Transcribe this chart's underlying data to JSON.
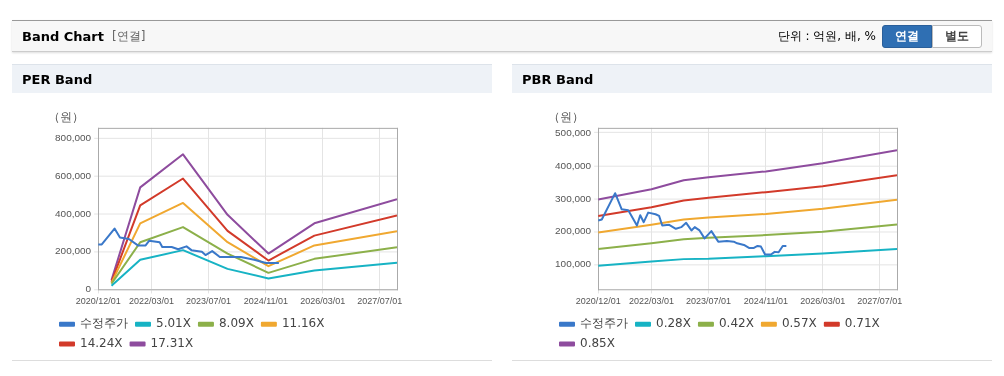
{
  "chart_data": [
    {
      "type": "other",
      "title": "Band Chart",
      "annotations": [
        "[연결]",
        "단위 : 억원, 배, %",
        "연결",
        "별도"
      ]
    },
    {
      "type": "line",
      "title": "PER Band",
      "ylabel": "（원）",
      "xlim": [
        "2020-12-01",
        "2027-11-25"
      ],
      "ylim": [
        0,
        855000
      ],
      "xticks": [
        {
          "value": "2020-12-01",
          "label": "2020/12/01"
        },
        {
          "value": "2022-03-01",
          "label": "2022/03/01"
        },
        {
          "value": "2023-07-01",
          "label": "2023/07/01"
        },
        {
          "value": "2024-11-01",
          "label": "2024/11/01"
        },
        {
          "value": "2026-03-01",
          "label": "2026/03/01"
        },
        {
          "value": "2027-07-01",
          "label": "2027/07/01"
        }
      ],
      "yticks": [
        {
          "value": 0,
          "label": "0"
        },
        {
          "value": 200000,
          "label": "200,000"
        },
        {
          "value": 400000,
          "label": "400,000"
        },
        {
          "value": 600000,
          "label": "600,000"
        },
        {
          "value": 800000,
          "label": "800,000"
        }
      ],
      "grid": true,
      "legend": "bottom",
      "marker": "none",
      "line_style": "solid",
      "series": [
        {
          "name": "수정주가",
          "color": "#3a78c9",
          "x": [
            "2020-12-01",
            "2021-01-01",
            "2021-04-20",
            "2021-06-05",
            "2021-08-20",
            "2021-11-05",
            "2022-01-10",
            "2022-02-10",
            "2022-05-10",
            "2022-06-01",
            "2022-08-20",
            "2022-10-15",
            "2022-12-25",
            "2023-02-05",
            "2023-05-05",
            "2023-06-05",
            "2023-08-01",
            "2023-10-05",
            "2023-12-05",
            "2024-04-01",
            "2024-07-25",
            "2024-11-01",
            "2024-12-25",
            "2025-02-20"
          ],
          "values": [
            238000,
            238000,
            322000,
            275000,
            267000,
            233000,
            233000,
            258000,
            250000,
            225000,
            225000,
            213000,
            228000,
            208000,
            199000,
            182000,
            203000,
            172000,
            172000,
            172000,
            157000,
            140000,
            140000,
            140000
          ]
        },
        {
          "name": "5.01X",
          "color": "#17b3c4",
          "x": [
            "2021-03-25",
            "2021-11-25",
            "2022-11-25",
            "2023-12-10",
            "2024-11-23",
            "2025-12-20",
            "2027-11-25"
          ],
          "values": [
            20000,
            157000,
            208000,
            109000,
            58000,
            100000,
            141000
          ]
        },
        {
          "name": "8.09X",
          "color": "#8cb04a",
          "x": [
            "2021-03-25",
            "2021-11-25",
            "2022-11-25",
            "2023-12-10",
            "2024-11-23",
            "2025-12-20",
            "2027-11-25"
          ],
          "values": [
            30000,
            250000,
            330000,
            190000,
            88000,
            162000,
            223000
          ]
        },
        {
          "name": "11.16X",
          "color": "#f0a830",
          "x": [
            "2021-03-25",
            "2021-11-25",
            "2022-11-25",
            "2023-12-10",
            "2024-11-23",
            "2025-12-20",
            "2027-11-25"
          ],
          "values": [
            35000,
            350000,
            458000,
            250000,
            123000,
            233000,
            308000
          ]
        },
        {
          "name": "14.24X",
          "color": "#d23a2a",
          "x": [
            "2021-03-25",
            "2021-11-25",
            "2022-11-25",
            "2023-12-10",
            "2024-11-23",
            "2025-12-20",
            "2027-11-25"
          ],
          "values": [
            40000,
            445000,
            587000,
            310000,
            153000,
            285000,
            392000
          ]
        },
        {
          "name": "17.31X",
          "color": "#8e4c9e",
          "x": [
            "2021-03-25",
            "2021-11-25",
            "2022-11-25",
            "2023-12-10",
            "2024-11-23",
            "2025-12-20",
            "2027-11-25"
          ],
          "values": [
            50000,
            540000,
            715000,
            395000,
            190000,
            350000,
            477000
          ]
        }
      ]
    },
    {
      "type": "line",
      "title": "PBR Band",
      "ylabel": "（원）",
      "xlim": [
        "2020-12-01",
        "2027-11-25"
      ],
      "ylim": [
        25000,
        515000
      ],
      "xticks": [
        {
          "value": "2020-12-01",
          "label": "2020/12/01"
        },
        {
          "value": "2022-03-01",
          "label": "2022/03/01"
        },
        {
          "value": "2023-07-01",
          "label": "2023/07/01"
        },
        {
          "value": "2024-11-01",
          "label": "2024/11/01"
        },
        {
          "value": "2026-03-01",
          "label": "2026/03/01"
        },
        {
          "value": "2027-07-01",
          "label": "2027/07/01"
        }
      ],
      "yticks": [
        {
          "value": 100000,
          "label": "100,000"
        },
        {
          "value": 200000,
          "label": "200,000"
        },
        {
          "value": 300000,
          "label": "300,000"
        },
        {
          "value": 400000,
          "label": "400,000"
        },
        {
          "value": 500000,
          "label": "500,000"
        }
      ],
      "grid": true,
      "legend": "bottom",
      "marker": "none",
      "line_style": "solid",
      "series": [
        {
          "name": "수정주가",
          "color": "#3a78c9",
          "x": [
            "2020-12-01",
            "2021-01-01",
            "2021-04-25",
            "2021-06-20",
            "2021-08-15",
            "2021-10-28",
            "2021-11-25",
            "2021-12-25",
            "2022-02-01",
            "2022-04-05",
            "2022-05-05",
            "2022-06-01",
            "2022-07-30",
            "2022-09-25",
            "2022-11-10",
            "2022-12-22",
            "2023-02-05",
            "2023-03-05",
            "2023-04-15",
            "2023-05-28",
            "2023-07-25",
            "2023-09-22",
            "2023-12-05",
            "2024-02-01",
            "2024-03-01",
            "2024-04-28",
            "2024-06-10",
            "2024-07-22",
            "2024-08-22",
            "2024-09-20",
            "2024-10-25",
            "2024-12-15",
            "2025-01-15",
            "2025-02-18",
            "2025-03-25",
            "2025-04-25"
          ],
          "values": [
            234000,
            237000,
            317000,
            268000,
            265000,
            219000,
            250000,
            229000,
            258000,
            253000,
            248000,
            219000,
            221000,
            209000,
            214000,
            227000,
            204000,
            214000,
            204000,
            180000,
            202000,
            170000,
            172000,
            170000,
            165000,
            160000,
            151000,
            151000,
            157000,
            155000,
            131000,
            131000,
            139000,
            138000,
            157000,
            157000
          ]
        },
        {
          "name": "0.28X",
          "color": "#17b3c4",
          "x": [
            "2020-12-01",
            "2022-03-01",
            "2022-12-01",
            "2023-07-01",
            "2024-11-01",
            "2026-03-01",
            "2027-11-25"
          ],
          "values": [
            97000,
            110000,
            117000,
            118000,
            126000,
            134000,
            148000
          ]
        },
        {
          "name": "0.42X",
          "color": "#8cb04a",
          "x": [
            "2020-12-01",
            "2022-03-01",
            "2022-12-01",
            "2023-07-01",
            "2024-11-01",
            "2026-03-01",
            "2027-11-25"
          ],
          "values": [
            148000,
            165000,
            177000,
            182000,
            190000,
            200000,
            222000
          ]
        },
        {
          "name": "0.57X",
          "color": "#f0a830",
          "x": [
            "2020-12-01",
            "2022-03-01",
            "2022-12-01",
            "2023-07-01",
            "2024-11-01",
            "2026-03-01",
            "2027-11-25"
          ],
          "values": [
            198000,
            221000,
            237000,
            243000,
            254000,
            270000,
            297000
          ]
        },
        {
          "name": "0.71X",
          "color": "#d23a2a",
          "x": [
            "2020-12-01",
            "2022-03-01",
            "2022-12-01",
            "2023-07-01",
            "2024-11-01",
            "2026-03-01",
            "2027-11-25"
          ],
          "values": [
            248000,
            274000,
            295000,
            303000,
            320000,
            338000,
            371000
          ]
        },
        {
          "name": "0.85X",
          "color": "#8e4c9e",
          "x": [
            "2020-12-01",
            "2022-03-01",
            "2022-12-01",
            "2023-07-01",
            "2024-11-01",
            "2026-03-01",
            "2027-11-25"
          ],
          "values": [
            298000,
            329000,
            356000,
            365000,
            383000,
            408000,
            447000
          ]
        }
      ]
    }
  ]
}
